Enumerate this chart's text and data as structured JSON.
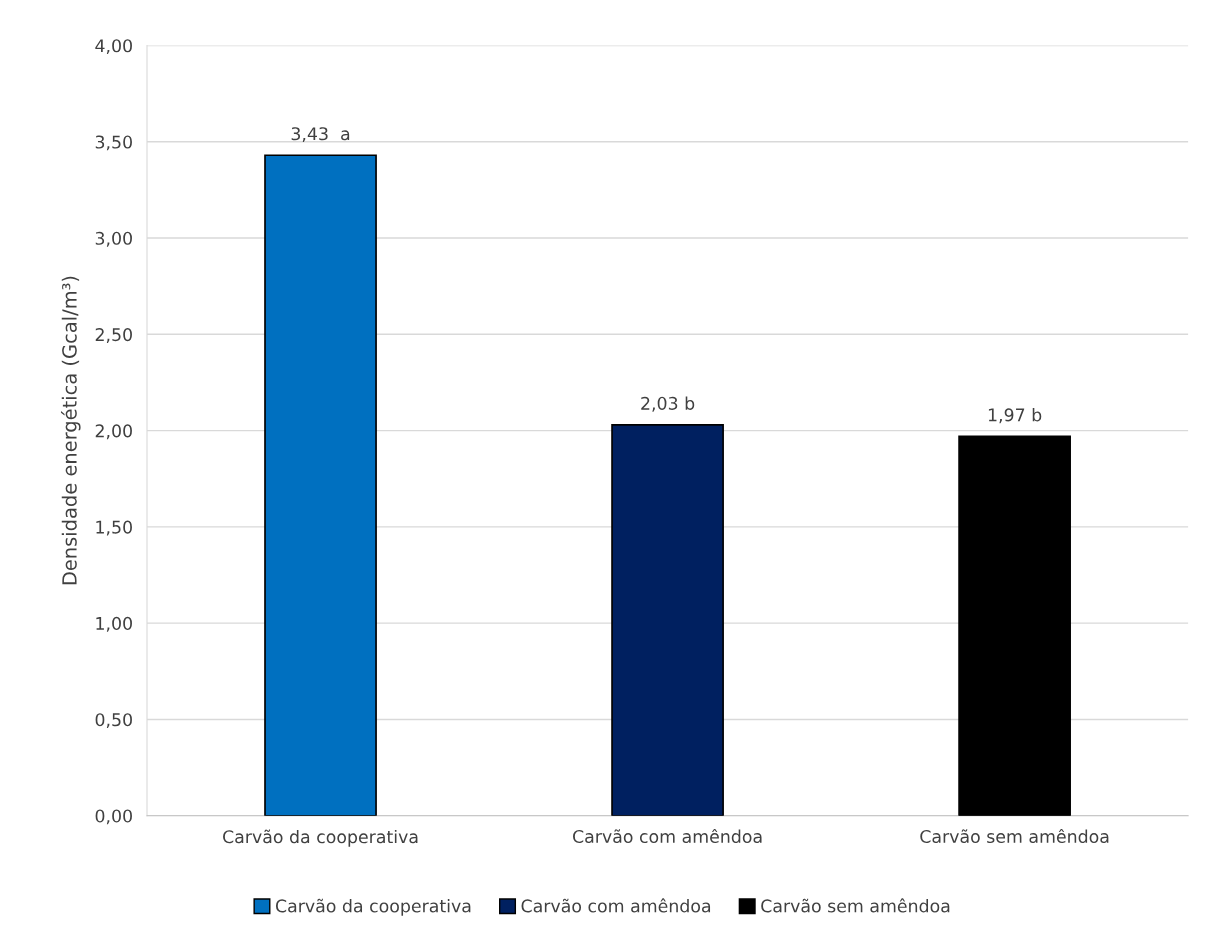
{
  "chart_data": {
    "type": "bar",
    "ylabel": "Densidade energética (Gcal/m³)",
    "categories": [
      "Carvão da cooperativa",
      "Carvão com amêndoa",
      "Carvão sem amêndoa"
    ],
    "series": [
      {
        "name": "Carvão da cooperativa",
        "color": "#0070c0",
        "values": [
          3.43,
          null,
          null
        ],
        "value_labels": [
          "3,43  a",
          null,
          null
        ]
      },
      {
        "name": "Carvão com amêndoa",
        "color": "#002060",
        "values": [
          null,
          2.03,
          null
        ],
        "value_labels": [
          null,
          "2,03 b",
          null
        ]
      },
      {
        "name": "Carvão sem amêndoa",
        "color": "#000000",
        "values": [
          null,
          null,
          1.97
        ],
        "value_labels": [
          null,
          null,
          "1,97 b"
        ]
      }
    ],
    "ylim": [
      0,
      4
    ],
    "yticks": [
      {
        "value": 0,
        "label": "0,00"
      },
      {
        "value": 0.5,
        "label": "0,50"
      },
      {
        "value": 1,
        "label": "1,00"
      },
      {
        "value": 1.5,
        "label": "1,50"
      },
      {
        "value": 2,
        "label": "2,00"
      },
      {
        "value": 2.5,
        "label": "2,50"
      },
      {
        "value": 3,
        "label": "3,00"
      },
      {
        "value": 3.5,
        "label": "3,50"
      },
      {
        "value": 4,
        "label": "4,00"
      }
    ],
    "grid": "y",
    "legend": "bottom"
  }
}
